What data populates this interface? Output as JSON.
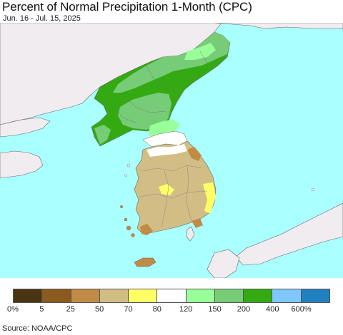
{
  "header": {
    "title": "Percent of Normal Precipitation 1-Month (CPC)",
    "date_range": "Jun. 16 - Jul. 15, 2025"
  },
  "legend": {
    "colors": [
      "#4a3412",
      "#8b5a1e",
      "#c18b46",
      "#d2bd85",
      "#ffff66",
      "#ffffff",
      "#99ff99",
      "#77cc77",
      "#33aa11",
      "#7fc7ff",
      "#2180c0"
    ],
    "ticks": [
      "0%",
      "5",
      "25",
      "50",
      "70",
      "80",
      "120",
      "150",
      "200",
      "400",
      "600%"
    ]
  },
  "footer": {
    "source": "Source: NOAA/CPC"
  },
  "map_colors": {
    "sea": "#aaffff",
    "land": "#f0ecf0",
    "border": "#666666"
  }
}
